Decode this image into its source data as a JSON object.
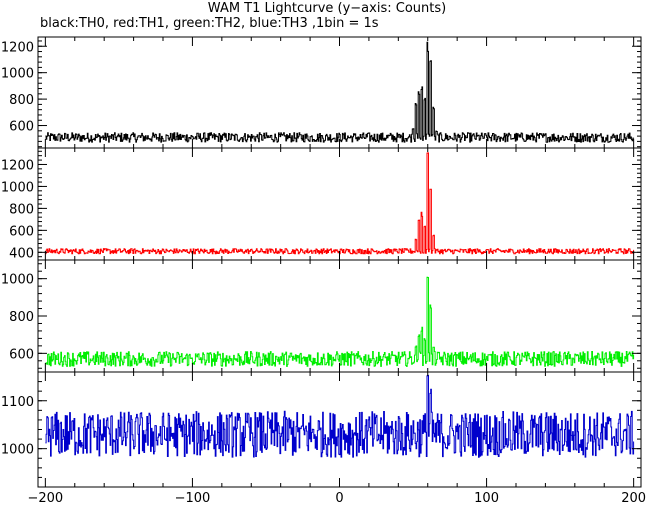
{
  "title": "WAM T1 Lightcurve (y−axis: Counts)",
  "subtitle": "black:TH0, red:TH1, green:TH2, blue:TH3 ,1bin = 1s",
  "chart_data": {
    "type": "line",
    "x_range": [
      -205,
      205
    ],
    "x_ticks": [
      -200,
      -100,
      0,
      100,
      200
    ],
    "panels": [
      {
        "name": "TH0",
        "color": "#000000",
        "ylim": [
          430,
          1270
        ],
        "y_ticks": [
          600,
          800,
          1000,
          1200
        ],
        "baseline": 510,
        "noise": 45,
        "peaks": [
          {
            "x": 50,
            "y": 580
          },
          {
            "x": 52,
            "y": 780
          },
          {
            "x": 54,
            "y": 860
          },
          {
            "x": 56,
            "y": 930
          },
          {
            "x": 58,
            "y": 820
          },
          {
            "x": 60,
            "y": 1250
          },
          {
            "x": 62,
            "y": 1100
          },
          {
            "x": 64,
            "y": 760
          },
          {
            "x": 66,
            "y": 560
          }
        ]
      },
      {
        "name": "TH1",
        "color": "#ff0000",
        "ylim": [
          330,
          1350
        ],
        "y_ticks": [
          400,
          600,
          800,
          1000,
          1200
        ],
        "baseline": 410,
        "noise": 30,
        "peaks": [
          {
            "x": 52,
            "y": 520
          },
          {
            "x": 54,
            "y": 720
          },
          {
            "x": 56,
            "y": 780
          },
          {
            "x": 58,
            "y": 650
          },
          {
            "x": 60,
            "y": 1330
          },
          {
            "x": 62,
            "y": 980
          },
          {
            "x": 64,
            "y": 560
          }
        ]
      },
      {
        "name": "TH2",
        "color": "#00ee00",
        "ylim": [
          500,
          1100
        ],
        "y_ticks": [
          600,
          800,
          1000
        ],
        "baseline": 570,
        "noise": 50,
        "peaks": [
          {
            "x": 52,
            "y": 640
          },
          {
            "x": 54,
            "y": 700
          },
          {
            "x": 56,
            "y": 740
          },
          {
            "x": 58,
            "y": 680
          },
          {
            "x": 60,
            "y": 1070
          },
          {
            "x": 62,
            "y": 870
          },
          {
            "x": 64,
            "y": 640
          }
        ]
      },
      {
        "name": "TH3",
        "color": "#0000cc",
        "ylim": [
          920,
          1160
        ],
        "y_ticks": [
          1000,
          1100
        ],
        "baseline": 1030,
        "noise": 60,
        "peaks": [
          {
            "x": 60,
            "y": 1160
          },
          {
            "x": 62,
            "y": 1130
          }
        ]
      }
    ]
  }
}
